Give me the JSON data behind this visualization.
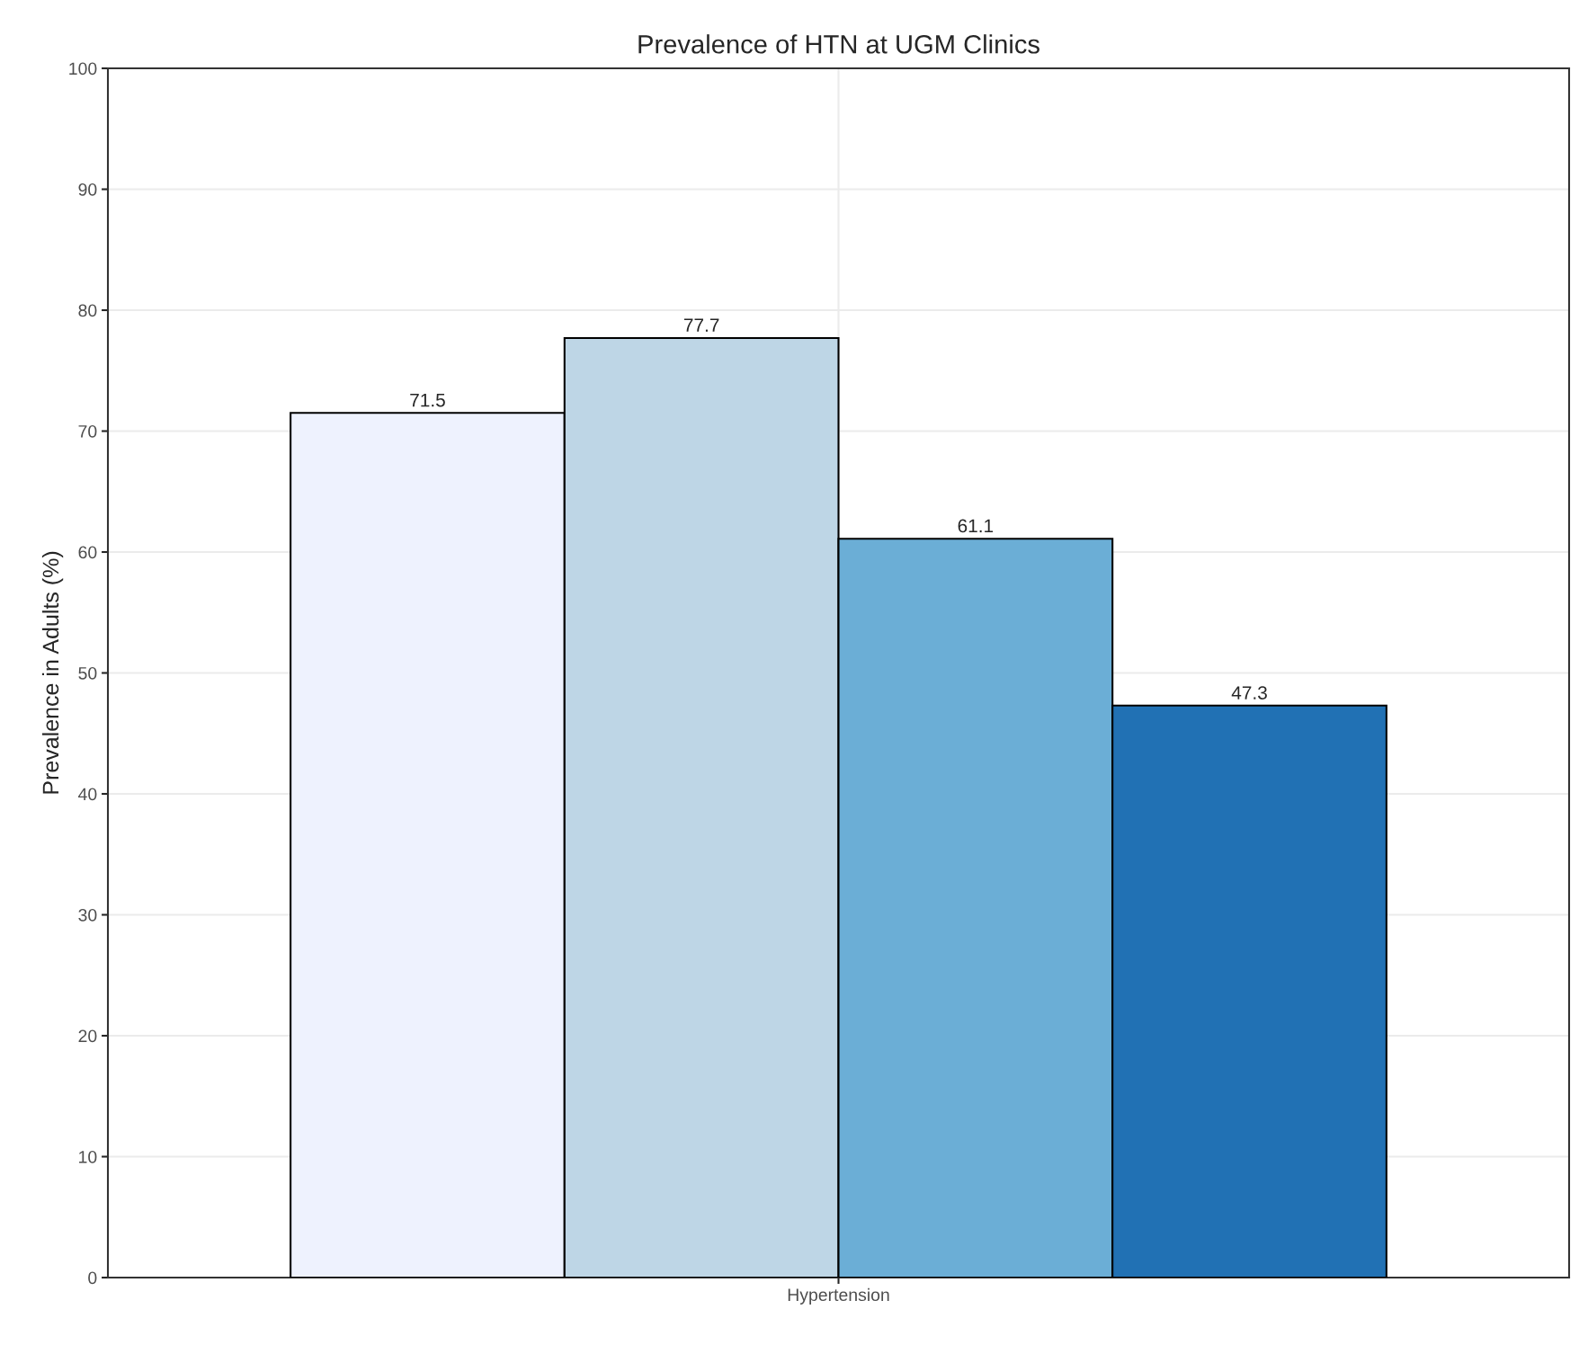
{
  "chart_data": {
    "type": "bar",
    "title": "Prevalence of HTN at UGM Clinics",
    "ylabel": "Prevalence in Adults (%)",
    "categories": [
      "Hypertension"
    ],
    "series": [
      {
        "color": "#eef2fe",
        "values": [
          71.5
        ]
      },
      {
        "color": "#bed6e6",
        "values": [
          77.7
        ]
      },
      {
        "color": "#6baed6",
        "values": [
          61.1
        ]
      },
      {
        "color": "#2171b4",
        "values": [
          47.3
        ]
      }
    ],
    "ylim": [
      0,
      100
    ],
    "yticks": [
      0,
      10,
      20,
      30,
      40,
      50,
      60,
      70,
      80,
      90,
      100
    ],
    "grid": true,
    "data_labels": true
  }
}
